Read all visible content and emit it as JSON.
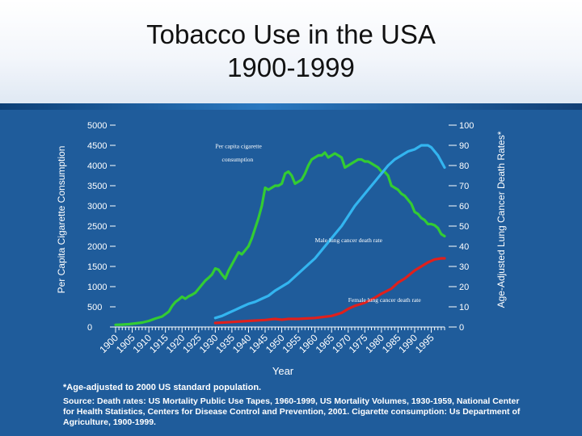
{
  "title_line1": "Tobacco Use in the USA",
  "title_line2": "1900-1999",
  "footnote": "*Age-adjusted to 2000 US standard population.",
  "source": "Source: Death rates: US Mortality Public Use Tapes, 1960-1999, US Mortality Volumes, 1930-1959, National Center for Health Statistics, Centers for Disease Control and Prevention, 2001. Cigarette consumption: Us Department of Agriculture, 1900-1999.",
  "colors": {
    "background": "#1f5c9b",
    "cigarette": "#33cc33",
    "male": "#33b5f0",
    "female": "#e0201c",
    "axis": "#ffffff"
  },
  "chart_data": {
    "type": "line",
    "title": "Tobacco Use in the USA 1900-1999",
    "xlabel": "Year",
    "ylabel_left": "Per Capita Cigarette Consumption",
    "ylabel_right": "Age-Adjusted Lung Cancer Death Rates*",
    "xlim": [
      1900,
      1999
    ],
    "ylim_left": [
      0,
      5000
    ],
    "ylim_right": [
      0,
      100
    ],
    "x_ticks": [
      1900,
      1905,
      1910,
      1915,
      1920,
      1925,
      1930,
      1935,
      1940,
      1945,
      1950,
      1955,
      1960,
      1965,
      1970,
      1975,
      1980,
      1985,
      1990,
      1995
    ],
    "y_left_ticks": [
      0,
      500,
      1000,
      1500,
      2000,
      2500,
      3000,
      3500,
      4000,
      4500,
      5000
    ],
    "y_right_ticks": [
      0,
      10,
      20,
      30,
      40,
      50,
      60,
      70,
      80,
      90,
      100
    ],
    "annotations": [
      {
        "text": "Per capita cigarette",
        "x": 1930,
        "y": 4430
      },
      {
        "text": "consumption",
        "x": 1932,
        "y": 4100
      },
      {
        "text": "Male lung cancer death rate",
        "x": 1960,
        "y": 2100
      },
      {
        "text": "Female lung cancer death rate",
        "x": 1970,
        "y": 620
      }
    ],
    "series": [
      {
        "axis": "left",
        "x": [
          1900,
          1902,
          1904,
          1906,
          1908,
          1910,
          1912,
          1914,
          1916,
          1917,
          1918,
          1919,
          1920,
          1921,
          1922,
          1923,
          1924,
          1925,
          1926,
          1927,
          1928,
          1929,
          1930,
          1931,
          1932,
          1933,
          1934,
          1935,
          1936,
          1937,
          1938,
          1939,
          1940,
          1941,
          1942,
          1943,
          1944,
          1945,
          1946,
          1947,
          1948,
          1949,
          1950,
          1951,
          1952,
          1953,
          1954,
          1955,
          1956,
          1957,
          1958,
          1959,
          1960,
          1961,
          1962,
          1963,
          1964,
          1965,
          1966,
          1967,
          1968,
          1969,
          1970,
          1971,
          1972,
          1973,
          1974,
          1975,
          1976,
          1977,
          1978,
          1979,
          1980,
          1981,
          1982,
          1983,
          1984,
          1985,
          1986,
          1987,
          1988,
          1989,
          1990,
          1991,
          1992,
          1993,
          1994,
          1995,
          1996,
          1997,
          1998,
          1999
        ],
        "values": [
          54,
          60,
          70,
          90,
          110,
          150,
          210,
          260,
          380,
          520,
          620,
          680,
          750,
          700,
          760,
          800,
          850,
          950,
          1050,
          1150,
          1220,
          1300,
          1450,
          1420,
          1300,
          1200,
          1400,
          1550,
          1700,
          1850,
          1800,
          1900,
          2000,
          2200,
          2450,
          2700,
          3000,
          3450,
          3400,
          3450,
          3500,
          3500,
          3550,
          3800,
          3850,
          3750,
          3550,
          3600,
          3650,
          3800,
          4000,
          4150,
          4200,
          4250,
          4250,
          4320,
          4200,
          4250,
          4300,
          4250,
          4200,
          3950,
          4000,
          4050,
          4100,
          4150,
          4150,
          4100,
          4100,
          4050,
          4000,
          3950,
          3850,
          3840,
          3750,
          3500,
          3450,
          3400,
          3300,
          3250,
          3150,
          3050,
          2850,
          2800,
          2700,
          2650,
          2550,
          2550,
          2520,
          2450,
          2300,
          2250
        ]
      },
      {
        "axis": "right",
        "x": [
          1930,
          1932,
          1934,
          1936,
          1938,
          1940,
          1942,
          1944,
          1946,
          1948,
          1950,
          1952,
          1954,
          1956,
          1958,
          1960,
          1962,
          1964,
          1966,
          1968,
          1970,
          1972,
          1974,
          1976,
          1978,
          1980,
          1982,
          1984,
          1986,
          1988,
          1990,
          1991,
          1992,
          1993,
          1994,
          1995,
          1996,
          1997,
          1998,
          1999
        ],
        "values": [
          4.5,
          5.5,
          7,
          8.5,
          10,
          11.5,
          12.5,
          14,
          15.5,
          18,
          20,
          22,
          25,
          28,
          31,
          34,
          38,
          42,
          46,
          50,
          55,
          60,
          64,
          68,
          72,
          76,
          80,
          83,
          85,
          87,
          88,
          89,
          90,
          90,
          90,
          89,
          87,
          85,
          82,
          79
        ]
      },
      {
        "axis": "right",
        "x": [
          1930,
          1935,
          1940,
          1945,
          1948,
          1950,
          1952,
          1955,
          1960,
          1965,
          1968,
          1970,
          1972,
          1975,
          1978,
          1980,
          1983,
          1985,
          1987,
          1990,
          1992,
          1994,
          1996,
          1998,
          1999
        ],
        "values": [
          2,
          2.5,
          3,
          3.5,
          4,
          3.6,
          4,
          4,
          4.5,
          5.5,
          7,
          9,
          10.5,
          12,
          14.5,
          16.5,
          19,
          22,
          24,
          28,
          30,
          32,
          33.5,
          34,
          34
        ]
      }
    ]
  }
}
